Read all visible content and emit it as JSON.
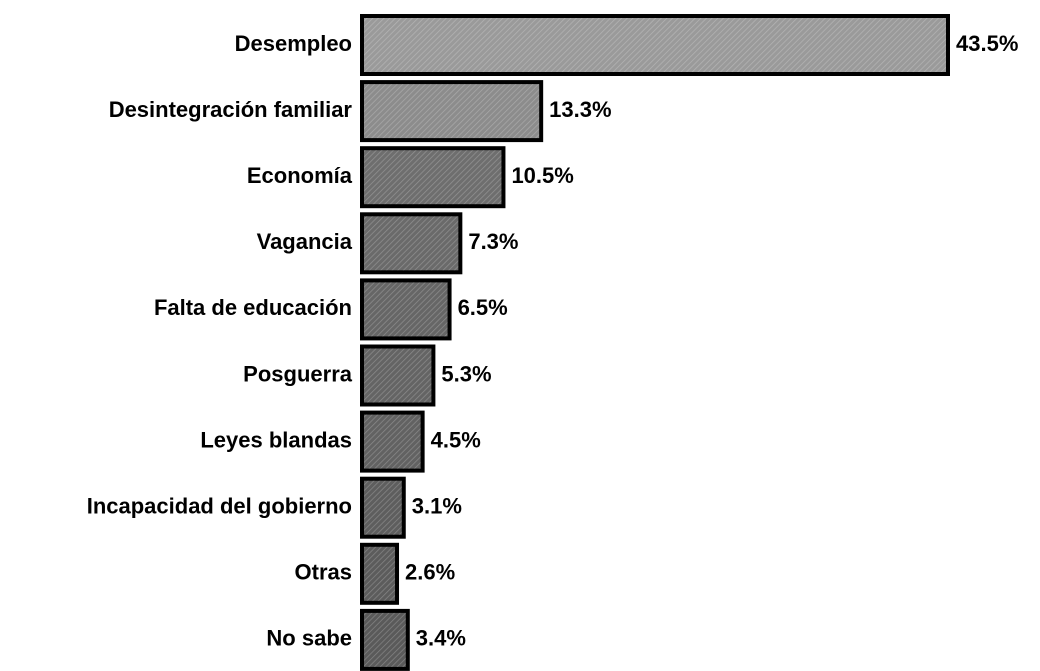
{
  "chart_data": {
    "type": "bar",
    "orientation": "horizontal",
    "categories": [
      "Desempleo",
      "Desintegración familiar",
      "Economía",
      "Vagancia",
      "Falta de educación",
      "Posguerra",
      "Leyes blandas",
      "Incapacidad del gobierno",
      "Otras",
      "No sabe"
    ],
    "values": [
      43.5,
      13.3,
      10.5,
      7.3,
      6.5,
      5.3,
      4.5,
      3.1,
      2.6,
      3.4
    ],
    "value_labels": [
      "43.5%",
      "13.3%",
      "10.5%",
      "7.3%",
      "6.5%",
      "5.3%",
      "4.5%",
      "3.1%",
      "2.6%",
      "3.4%"
    ],
    "colors": [
      "#9a9a9a",
      "#8c8c8c",
      "#6e6e6e",
      "#6a6a6a",
      "#666666",
      "#646464",
      "#626262",
      "#5e5e5e",
      "#5c5c5c",
      "#5a5a5a"
    ]
  }
}
